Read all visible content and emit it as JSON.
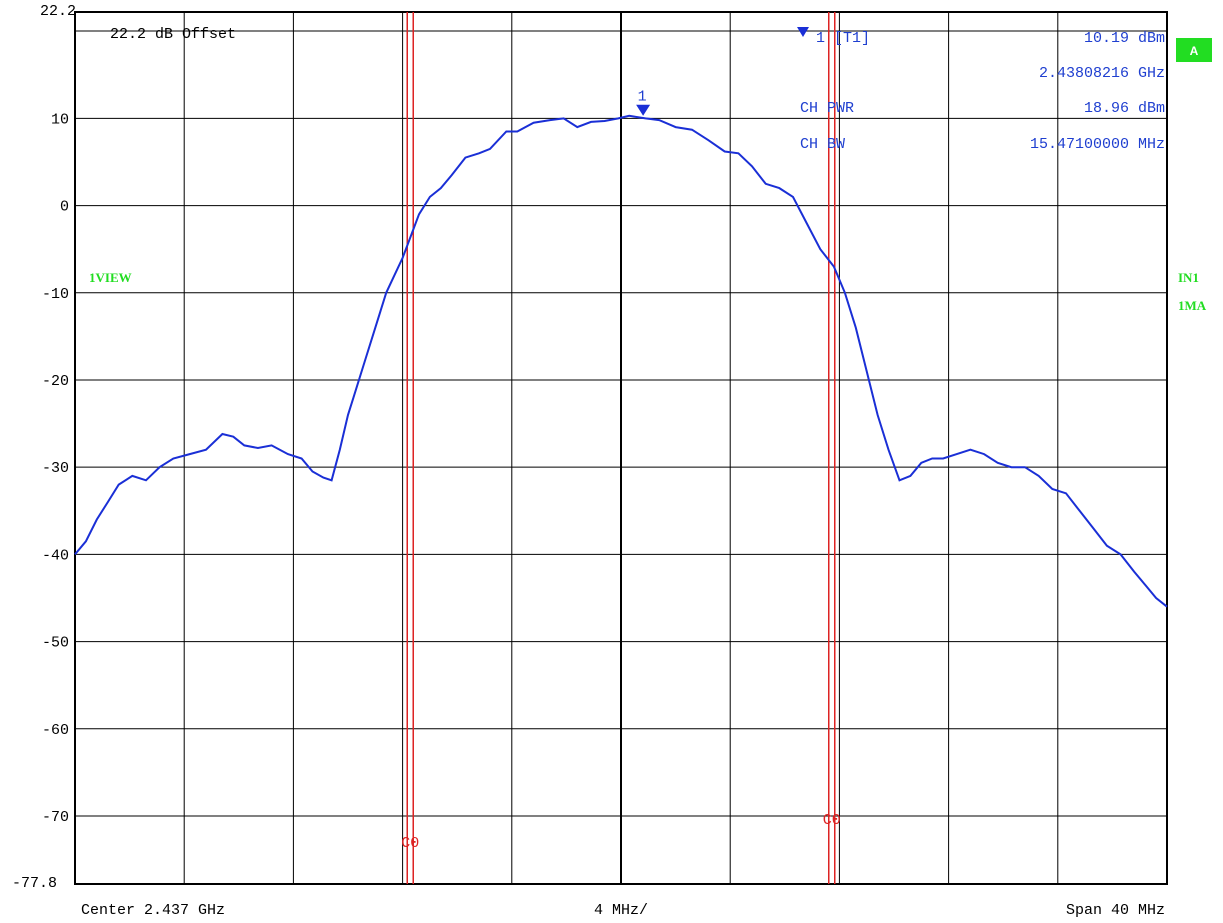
{
  "chart_data": {
    "type": "line",
    "title": "",
    "xlabel": "",
    "ylabel": "",
    "unit": "dBm",
    "ref_level_label": "22.2",
    "bottom_level_label": "-77.8",
    "ylim": [
      -77.8,
      22.2
    ],
    "xlim": [
      -20,
      20
    ],
    "x_units": "MHz offset from center",
    "y_tick_labels": [
      "10",
      "0",
      "-10",
      "-20",
      "-30",
      "-40",
      "-50",
      "-60",
      "-70"
    ],
    "y_tick_values": [
      10,
      0,
      -10,
      -20,
      -30,
      -40,
      -50,
      -60,
      -70
    ],
    "grid": true,
    "center_label": "Center 2.437 GHz",
    "div_label": "4 MHz/",
    "span_label": "Span 40 MHz",
    "offset_label": "22.2 dB Offset",
    "series": [
      {
        "color": "#1a2fd6",
        "x": [
          -20,
          -19.6,
          -19.2,
          -18.8,
          -18.4,
          -17.9,
          -17.4,
          -16.9,
          -16.4,
          -15.8,
          -15.2,
          -14.6,
          -14.2,
          -13.8,
          -13.3,
          -12.8,
          -12.2,
          -11.7,
          -11.3,
          -10.9,
          -10.6,
          -10.3,
          -10.0,
          -9.8,
          -9.4,
          -9.0,
          -8.6,
          -8.3,
          -8.0,
          -7.7,
          -7.4,
          -7.0,
          -6.6,
          -6.2,
          -5.7,
          -5.2,
          -4.8,
          -4.2,
          -3.8,
          -3.2,
          -2.6,
          -2.1,
          -1.6,
          -1.1,
          -0.6,
          -0.1,
          0.3,
          0.9,
          1.4,
          2.0,
          2.6,
          3.2,
          3.8,
          4.3,
          4.8,
          5.3,
          5.8,
          6.3,
          6.8,
          7.3,
          7.8,
          8.2,
          8.6,
          9.0,
          9.4,
          9.8,
          10.2,
          10.6,
          11.0,
          11.4,
          11.8,
          12.3,
          12.8,
          13.3,
          13.8,
          14.3,
          14.8,
          15.3,
          15.8,
          16.3,
          16.8,
          17.3,
          17.8,
          18.3,
          18.8,
          19.2,
          19.6,
          20.0
        ],
        "y": [
          -40,
          -38.5,
          -36,
          -34,
          -32,
          -31,
          -31.5,
          -30,
          -29,
          -28.5,
          -28,
          -26.2,
          -26.5,
          -27.5,
          -27.8,
          -27.5,
          -28.5,
          -29,
          -30.5,
          -31.2,
          -31.5,
          -28,
          -24,
          -22,
          -18,
          -14,
          -10,
          -8,
          -6,
          -3.5,
          -1,
          1,
          2,
          3.5,
          5.5,
          6,
          6.5,
          8.5,
          8.5,
          9.5,
          9.8,
          10,
          9,
          9.6,
          9.7,
          10,
          10.3,
          10,
          9.8,
          9,
          8.7,
          7.5,
          6.2,
          6,
          4.5,
          2.5,
          2,
          1,
          -2,
          -5,
          -7,
          -10,
          -14,
          -19,
          -24,
          -28,
          -31.5,
          -31,
          -29.5,
          -29,
          -29,
          -28.5,
          -28,
          -28.5,
          -29.5,
          -30,
          -30,
          -31,
          -32.5,
          -33,
          -35,
          -37,
          -39,
          -40,
          -42,
          -43.5,
          -45,
          -46
        ]
      }
    ],
    "channel_lines": [
      {
        "label": "C0",
        "x": -7.72
      },
      {
        "label": "C0",
        "x": 7.72
      }
    ],
    "marker": {
      "label": "1",
      "tag": "1 [T1]",
      "x": 0.81,
      "y": 10.19,
      "level_text": "10.19 dBm",
      "freq_text": "2.43808216 GHz"
    },
    "channel_power": {
      "pwr_label": "CH PWR",
      "pwr_value": "18.96 dBm",
      "bw_label": "CH BW",
      "bw_value": "15.47100000 MHz"
    },
    "status_labels": {
      "trace_mode": "1VIEW",
      "badge": "A",
      "input": "IN1",
      "mode": "1MA"
    },
    "colors": {
      "trace": "#1a2fd6",
      "channel_lines": "#dd2222",
      "status_text": "#22dd22",
      "badge_bg": "#22dd22"
    }
  }
}
